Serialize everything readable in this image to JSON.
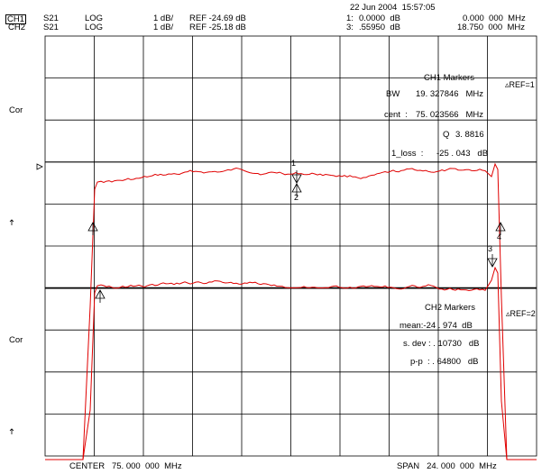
{
  "header": {
    "datetime": "22 Jun 2004  15:57:05",
    "ch1": {
      "channel": "CH1",
      "param": "S21",
      "format": "LOG",
      "scale": "1 dB/",
      "ref": "REF -24.69 dB",
      "marker_num": "1:",
      "marker_val": "0.0000  dB",
      "marker_freq": "0.000  000  MHz"
    },
    "ch2": {
      "channel": "CH2",
      "param": "S21",
      "format": "LOG",
      "scale": "1 dB/",
      "ref": "REF -25.18 dB",
      "marker_num": "3:",
      "marker_val": ".55950  dB",
      "marker_freq": "18.750  000  MHz"
    }
  },
  "side_labels": {
    "cor_top": "Cor",
    "cor_bottom": "Cor",
    "ref1": "▵REF=1",
    "ref2": "▵REF=2"
  },
  "ch1_markers": {
    "title": "CH1 Markers",
    "bw_label": "BW",
    "bw_value": "19. 327846   MHz",
    "cent_label": "cent  :",
    "cent_value": "75. 023566   MHz",
    "q_label": "Q",
    "q_value": "3. 8816",
    "loss_label": "1_loss  :",
    "loss_value": "-25 . 043   dB"
  },
  "ch2_markers": {
    "title": "CH2 Markers",
    "mean": "mean:-24 . 974  dB",
    "sdev": "s. dev : . 10730   dB",
    "pp": "p-p  : . 64800   dB"
  },
  "footer": {
    "center": "CENTER   75. 000  000  MHz",
    "span": "SPAN   24. 000  000  MHz"
  },
  "marker_labels": [
    "1",
    "2",
    "3",
    "4"
  ],
  "colors": {
    "trace": "#e00000",
    "grid": "#000000",
    "background": "#ffffff"
  }
}
